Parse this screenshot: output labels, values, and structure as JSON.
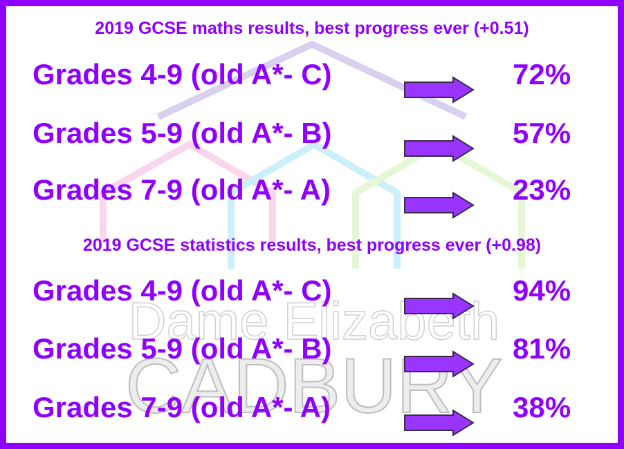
{
  "watermark": {
    "line1": "Dame Elizabeth",
    "line2": "CADBURY"
  },
  "sections": [
    {
      "title": "2019 GCSE maths results, best progress ever (+0.51)",
      "rows": [
        {
          "label": "Grades 4-9 (old A*- C)",
          "value": "72%"
        },
        {
          "label": "Grades 5-9 (old A*- B)",
          "value": "57%"
        },
        {
          "label": "Grades 7-9 (old A*- A)",
          "value": "23%"
        }
      ]
    },
    {
      "title": "2019 GCSE statistics results, best progress ever (+0.98)",
      "rows": [
        {
          "label": "Grades 4-9 (old A*- C)",
          "value": "94%"
        },
        {
          "label": "Grades 5-9 (old A*- B)",
          "value": "81%"
        },
        {
          "label": "Grades 7-9 (old A*- A)",
          "value": "38%"
        }
      ]
    }
  ]
}
